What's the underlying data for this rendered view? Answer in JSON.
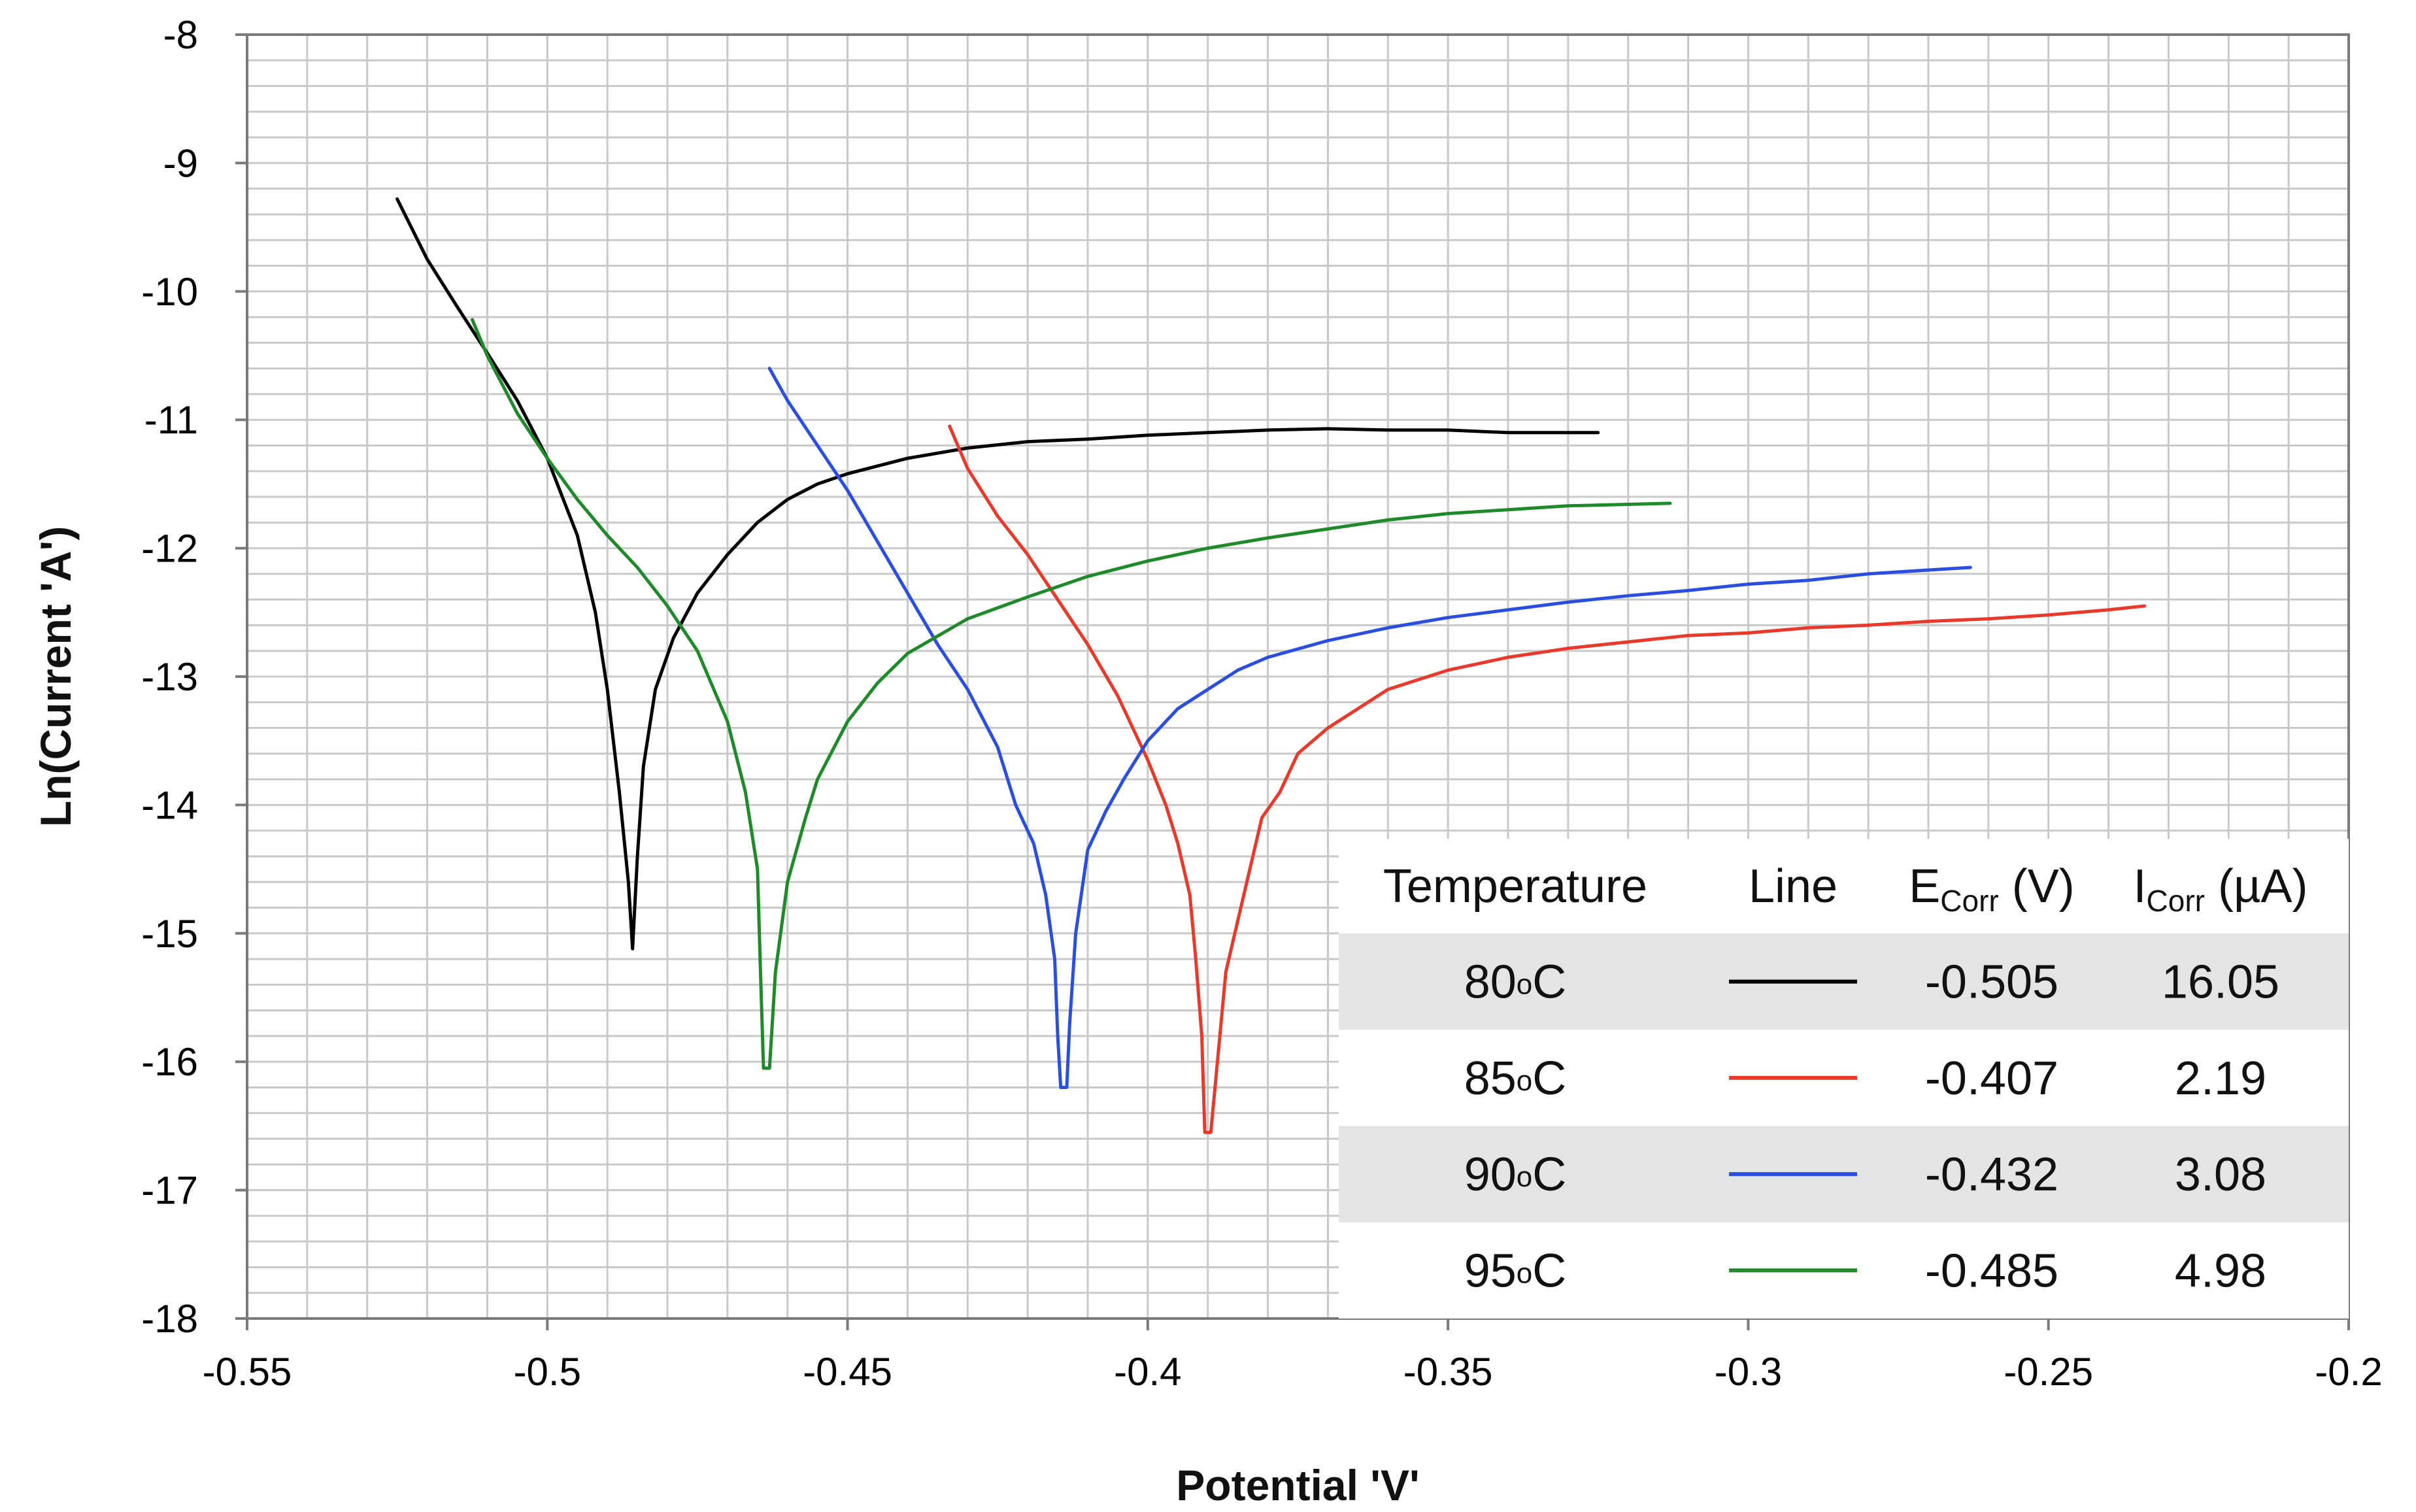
{
  "chart_data": {
    "type": "line",
    "title": "",
    "xlabel": "Potential 'V'",
    "ylabel": "Ln(Current 'A')",
    "xlim": [
      -0.55,
      -0.2
    ],
    "ylim": [
      -18,
      -8
    ],
    "x_ticks": [
      "-0.55",
      "-0.5",
      "-0.45",
      "-0.4",
      "-0.35",
      "-0.3",
      "-0.25",
      "-0.2"
    ],
    "y_ticks": [
      "-8",
      "-9",
      "-10",
      "-11",
      "-12",
      "-13",
      "-14",
      "-15",
      "-16",
      "-17",
      "-18"
    ],
    "grid": true,
    "series": [
      {
        "name": "80°C",
        "color": "#000000",
        "points": [
          [
            -0.525,
            -9.28
          ],
          [
            -0.52,
            -9.75
          ],
          [
            -0.515,
            -10.12
          ],
          [
            -0.51,
            -10.48
          ],
          [
            -0.505,
            -10.85
          ],
          [
            -0.5,
            -11.3
          ],
          [
            -0.495,
            -11.9
          ],
          [
            -0.492,
            -12.5
          ],
          [
            -0.49,
            -13.1
          ],
          [
            -0.488,
            -13.9
          ],
          [
            -0.4865,
            -14.6
          ],
          [
            -0.4858,
            -15.12
          ],
          [
            -0.485,
            -14.4
          ],
          [
            -0.484,
            -13.7
          ],
          [
            -0.482,
            -13.1
          ],
          [
            -0.479,
            -12.7
          ],
          [
            -0.475,
            -12.35
          ],
          [
            -0.47,
            -12.05
          ],
          [
            -0.465,
            -11.8
          ],
          [
            -0.46,
            -11.62
          ],
          [
            -0.455,
            -11.5
          ],
          [
            -0.45,
            -11.42
          ],
          [
            -0.44,
            -11.3
          ],
          [
            -0.43,
            -11.22
          ],
          [
            -0.42,
            -11.17
          ],
          [
            -0.41,
            -11.15
          ],
          [
            -0.4,
            -11.12
          ],
          [
            -0.39,
            -11.1
          ],
          [
            -0.38,
            -11.08
          ],
          [
            -0.37,
            -11.07
          ],
          [
            -0.36,
            -11.08
          ],
          [
            -0.35,
            -11.08
          ],
          [
            -0.34,
            -11.1
          ],
          [
            -0.325,
            -11.1
          ]
        ]
      },
      {
        "name": "85°C",
        "color": "#e8392a",
        "points": [
          [
            -0.433,
            -11.05
          ],
          [
            -0.43,
            -11.38
          ],
          [
            -0.425,
            -11.75
          ],
          [
            -0.42,
            -12.05
          ],
          [
            -0.415,
            -12.4
          ],
          [
            -0.41,
            -12.75
          ],
          [
            -0.405,
            -13.15
          ],
          [
            -0.4,
            -13.65
          ],
          [
            -0.397,
            -14.0
          ],
          [
            -0.395,
            -14.3
          ],
          [
            -0.393,
            -14.7
          ],
          [
            -0.392,
            -15.2
          ],
          [
            -0.391,
            -15.8
          ],
          [
            -0.3905,
            -16.55
          ],
          [
            -0.3895,
            -16.55
          ],
          [
            -0.388,
            -15.8
          ],
          [
            -0.387,
            -15.3
          ],
          [
            -0.385,
            -14.9
          ],
          [
            -0.383,
            -14.5
          ],
          [
            -0.381,
            -14.1
          ],
          [
            -0.378,
            -13.9
          ],
          [
            -0.375,
            -13.6
          ],
          [
            -0.37,
            -13.4
          ],
          [
            -0.365,
            -13.25
          ],
          [
            -0.36,
            -13.1
          ],
          [
            -0.35,
            -12.95
          ],
          [
            -0.34,
            -12.85
          ],
          [
            -0.33,
            -12.78
          ],
          [
            -0.32,
            -12.73
          ],
          [
            -0.31,
            -12.68
          ],
          [
            -0.3,
            -12.66
          ],
          [
            -0.29,
            -12.62
          ],
          [
            -0.28,
            -12.6
          ],
          [
            -0.27,
            -12.57
          ],
          [
            -0.26,
            -12.55
          ],
          [
            -0.25,
            -12.52
          ],
          [
            -0.24,
            -12.48
          ],
          [
            -0.234,
            -12.45
          ]
        ]
      },
      {
        "name": "90°C",
        "color": "#2a4fe0",
        "points": [
          [
            -0.463,
            -10.6
          ],
          [
            -0.46,
            -10.85
          ],
          [
            -0.455,
            -11.2
          ],
          [
            -0.45,
            -11.55
          ],
          [
            -0.445,
            -11.95
          ],
          [
            -0.44,
            -12.35
          ],
          [
            -0.435,
            -12.75
          ],
          [
            -0.43,
            -13.1
          ],
          [
            -0.425,
            -13.55
          ],
          [
            -0.422,
            -14.0
          ],
          [
            -0.419,
            -14.3
          ],
          [
            -0.417,
            -14.7
          ],
          [
            -0.4155,
            -15.2
          ],
          [
            -0.415,
            -15.8
          ],
          [
            -0.4145,
            -16.2
          ],
          [
            -0.4135,
            -16.2
          ],
          [
            -0.413,
            -15.7
          ],
          [
            -0.412,
            -15.0
          ],
          [
            -0.41,
            -14.35
          ],
          [
            -0.407,
            -14.05
          ],
          [
            -0.404,
            -13.8
          ],
          [
            -0.4,
            -13.5
          ],
          [
            -0.395,
            -13.25
          ],
          [
            -0.39,
            -13.1
          ],
          [
            -0.385,
            -12.95
          ],
          [
            -0.38,
            -12.85
          ],
          [
            -0.37,
            -12.72
          ],
          [
            -0.36,
            -12.62
          ],
          [
            -0.35,
            -12.54
          ],
          [
            -0.34,
            -12.48
          ],
          [
            -0.33,
            -12.42
          ],
          [
            -0.32,
            -12.37
          ],
          [
            -0.31,
            -12.33
          ],
          [
            -0.3,
            -12.28
          ],
          [
            -0.29,
            -12.25
          ],
          [
            -0.28,
            -12.2
          ],
          [
            -0.27,
            -12.17
          ],
          [
            -0.263,
            -12.15
          ]
        ]
      },
      {
        "name": "95°C",
        "color": "#1e8a2a",
        "points": [
          [
            -0.5125,
            -10.22
          ],
          [
            -0.51,
            -10.5
          ],
          [
            -0.505,
            -10.95
          ],
          [
            -0.5,
            -11.3
          ],
          [
            -0.495,
            -11.62
          ],
          [
            -0.49,
            -11.9
          ],
          [
            -0.485,
            -12.15
          ],
          [
            -0.48,
            -12.45
          ],
          [
            -0.475,
            -12.8
          ],
          [
            -0.47,
            -13.35
          ],
          [
            -0.467,
            -13.9
          ],
          [
            -0.465,
            -14.5
          ],
          [
            -0.4645,
            -15.3
          ],
          [
            -0.464,
            -16.05
          ],
          [
            -0.463,
            -16.05
          ],
          [
            -0.462,
            -15.3
          ],
          [
            -0.46,
            -14.6
          ],
          [
            -0.457,
            -14.1
          ],
          [
            -0.455,
            -13.8
          ],
          [
            -0.45,
            -13.35
          ],
          [
            -0.445,
            -13.05
          ],
          [
            -0.44,
            -12.82
          ],
          [
            -0.43,
            -12.55
          ],
          [
            -0.42,
            -12.38
          ],
          [
            -0.41,
            -12.22
          ],
          [
            -0.4,
            -12.1
          ],
          [
            -0.39,
            -12.0
          ],
          [
            -0.38,
            -11.92
          ],
          [
            -0.37,
            -11.85
          ],
          [
            -0.36,
            -11.78
          ],
          [
            -0.35,
            -11.73
          ],
          [
            -0.34,
            -11.7
          ],
          [
            -0.33,
            -11.67
          ],
          [
            -0.313,
            -11.65
          ]
        ]
      }
    ],
    "legend_table": {
      "placement": "bottom-right",
      "headers": {
        "temperature": "Temperature",
        "line": "Line",
        "ecorr": {
          "main": "E",
          "sub": "Corr",
          "unit": " (V)"
        },
        "icorr": {
          "main": "I",
          "sub": "Corr",
          "unit": " (µA)"
        }
      },
      "rows": [
        {
          "temp_value": "80",
          "temp_sup": "o",
          "temp_unit": "C",
          "color": "#000000",
          "ecorr": "-0.505",
          "icorr": "16.05",
          "shaded": true
        },
        {
          "temp_value": "85",
          "temp_sup": "o",
          "temp_unit": "C",
          "color": "#e8392a",
          "ecorr": "-0.407",
          "icorr": "2.19",
          "shaded": false
        },
        {
          "temp_value": "90",
          "temp_sup": "o",
          "temp_unit": "C",
          "color": "#2a4fe0",
          "ecorr": "-0.432",
          "icorr": "3.08",
          "shaded": true
        },
        {
          "temp_value": "95",
          "temp_sup": "o",
          "temp_unit": "C",
          "color": "#1e8a2a",
          "ecorr": "-0.485",
          "icorr": "4.98",
          "shaded": false
        }
      ]
    }
  }
}
